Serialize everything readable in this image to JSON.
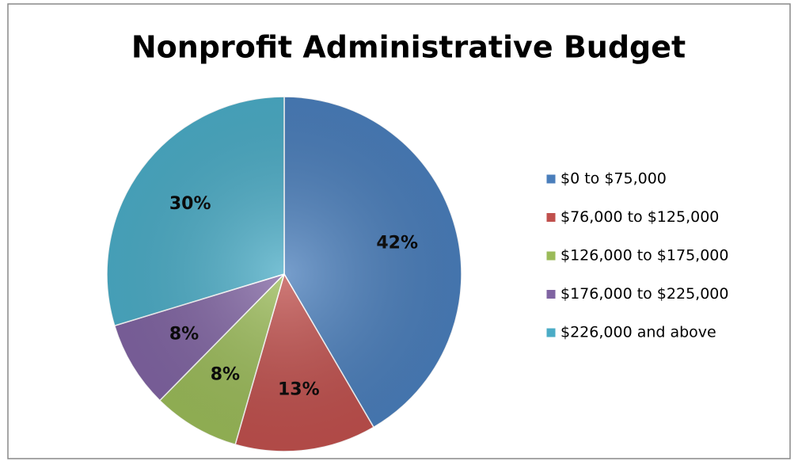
{
  "chart_data": {
    "type": "pie",
    "title": "Nonprofit Administrative Budget",
    "categories": [
      "$0 to $75,000",
      "$76,000 to $125,000",
      "$126,000 to $175,000",
      "$176,000 to $225,000",
      "$226,000 and above"
    ],
    "values": [
      42,
      13,
      8,
      8,
      30
    ],
    "value_labels": [
      "42%",
      "13%",
      "8%",
      "8%",
      "30%"
    ],
    "colors": [
      "#4a7ebb",
      "#c0504d",
      "#9bbb59",
      "#8064a2",
      "#4bacc6"
    ],
    "legend": "right"
  }
}
